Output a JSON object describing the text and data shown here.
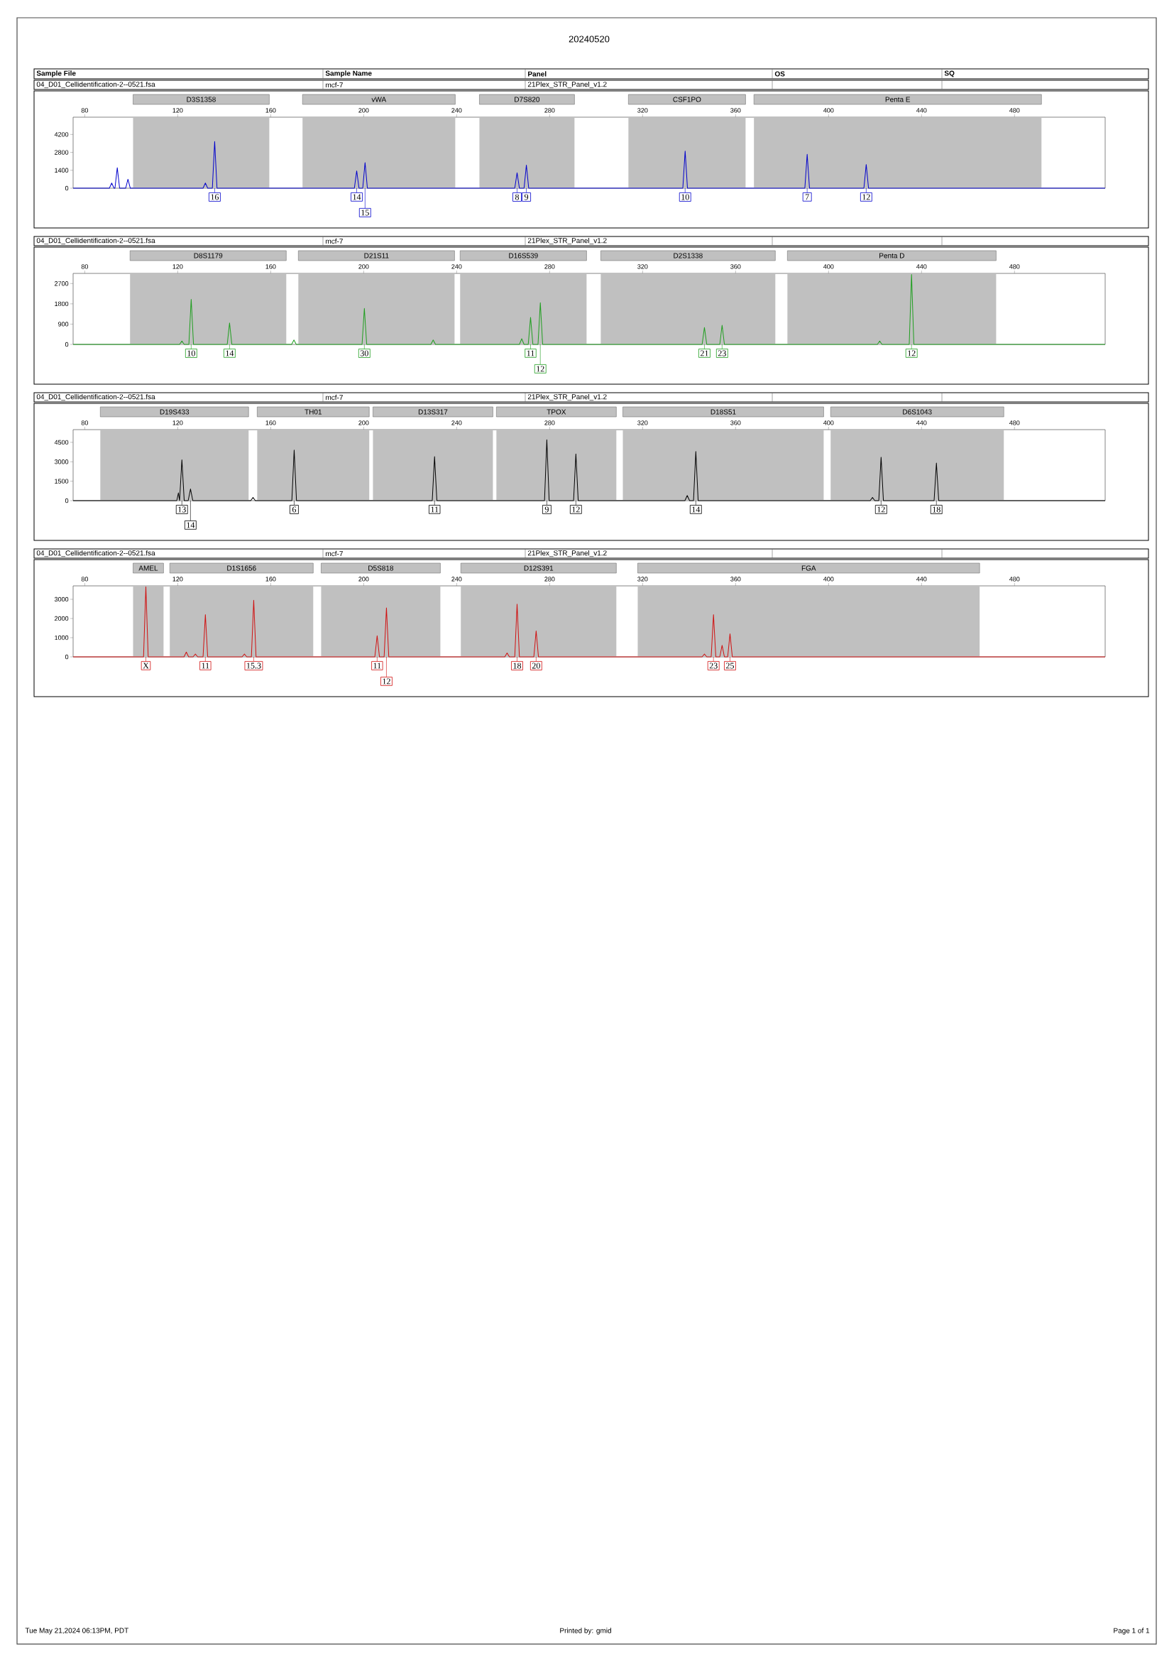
{
  "chart_data": [
    {
      "type": "other",
      "title": "20240520",
      "annotations": [
        "Sample File",
        "Sample Name",
        "Panel",
        "OS",
        "SQ",
        "Tue May 21,2024 06:13PM, PDT",
        "Printed by: gmid",
        "Page 1 of 1"
      ]
    },
    {
      "type": "line",
      "color": "#0000cc",
      "marker": "none",
      "xlim": [
        75,
        519
      ],
      "ylim": [
        0,
        5550
      ],
      "xticks": [
        80,
        120,
        160,
        200,
        240,
        280,
        320,
        360,
        400,
        440,
        480
      ],
      "yticks": [
        0,
        1400,
        2800,
        4200
      ],
      "x": [
        75,
        90.6,
        91.6,
        92.6,
        93,
        94,
        95,
        97.6,
        98.6,
        99.6,
        130.9,
        131.9,
        132.9,
        134.9,
        135.9,
        136.9,
        196,
        197,
        198,
        199.6,
        200.6,
        201.6,
        265,
        266,
        267,
        269,
        270,
        271,
        337.3,
        338.3,
        339.3,
        389.8,
        390.8,
        391.8,
        415.2,
        416.2,
        417.2,
        519
      ],
      "values": [
        0,
        0,
        400,
        0,
        0,
        1600,
        0,
        0,
        700,
        0,
        0,
        400,
        0,
        0,
        3650,
        0,
        0,
        1350,
        0,
        0,
        2000,
        0,
        0,
        1200,
        0,
        0,
        1800,
        0,
        0,
        2900,
        0,
        0,
        2650,
        0,
        0,
        1850,
        0,
        0
      ],
      "bands": [
        {
          "axis": "x",
          "from": 100.8,
          "to": 159.4,
          "label": "D3S1358",
          "color": "#c0c0c0"
        },
        {
          "axis": "x",
          "from": 173.7,
          "to": 239.4,
          "label": "vWA",
          "color": "#c0c0c0"
        },
        {
          "axis": "x",
          "from": 249.8,
          "to": 290.7,
          "label": "D7S820",
          "color": "#c0c0c0"
        },
        {
          "axis": "x",
          "from": 313.9,
          "to": 364.3,
          "label": "CSF1PO",
          "color": "#c0c0c0"
        },
        {
          "axis": "x",
          "from": 367.9,
          "to": 491.6,
          "label": "Penta E",
          "color": "#c0c0c0"
        }
      ],
      "annotations": [
        "04_D01_Cellidentification-2--0521.fsa",
        "mcf-7",
        "21Plex_STR_Panel_v1.2",
        {
          "text": "16",
          "x": 135.9,
          "y": 0
        },
        {
          "text": "14",
          "x": 197,
          "y": 0
        },
        {
          "text": "15",
          "x": 200.6,
          "y": 0
        },
        {
          "text": "8",
          "x": 266,
          "y": 0
        },
        {
          "text": "9",
          "x": 270,
          "y": 0
        },
        {
          "text": "10",
          "x": 338.3,
          "y": 0
        },
        {
          "text": "7",
          "x": 390.8,
          "y": 0
        },
        {
          "text": "12",
          "x": 416.2,
          "y": 0
        }
      ]
    },
    {
      "type": "line",
      "color": "#1f9e1f",
      "marker": "none",
      "xlim": [
        75,
        519
      ],
      "ylim": [
        0,
        3150
      ],
      "xticks": [
        80,
        120,
        160,
        200,
        240,
        280,
        320,
        360,
        400,
        440,
        480
      ],
      "yticks": [
        0,
        900,
        1800,
        2700
      ],
      "x": [
        75,
        120.8,
        121.8,
        122.8,
        124.8,
        125.8,
        126.8,
        141.3,
        142.3,
        143.3,
        169,
        170,
        171,
        199.3,
        200.3,
        201.3,
        228.9,
        229.9,
        230.9,
        267,
        268,
        269,
        270.8,
        271.8,
        272.8,
        275,
        276,
        277,
        345.6,
        346.6,
        347.6,
        353.2,
        354.2,
        355.2,
        421,
        422,
        423,
        434.7,
        435.7,
        436.7,
        519
      ],
      "values": [
        0,
        0,
        150,
        0,
        0,
        2000,
        0,
        0,
        950,
        0,
        0,
        200,
        0,
        0,
        1600,
        0,
        0,
        200,
        0,
        0,
        250,
        0,
        0,
        1200,
        0,
        0,
        1850,
        0,
        0,
        750,
        0,
        0,
        850,
        0,
        0,
        150,
        0,
        0,
        3100,
        0,
        0
      ],
      "bands": [
        {
          "axis": "x",
          "from": 99.5,
          "to": 166.7,
          "label": "D8S1179",
          "color": "#c0c0c0"
        },
        {
          "axis": "x",
          "from": 171.9,
          "to": 239.1,
          "label": "D21S11",
          "color": "#c0c0c0"
        },
        {
          "axis": "x",
          "from": 241.5,
          "to": 295.9,
          "label": "D16S539",
          "color": "#c0c0c0"
        },
        {
          "axis": "x",
          "from": 302,
          "to": 377.1,
          "label": "D2S1338",
          "color": "#c0c0c0"
        },
        {
          "axis": "x",
          "from": 382.3,
          "to": 472.1,
          "label": "Penta D",
          "color": "#c0c0c0"
        }
      ],
      "annotations": [
        "04_D01_Cellidentification-2--0521.fsa",
        "mcf-7",
        "21Plex_STR_Panel_v1.2",
        {
          "text": "10",
          "x": 125.8,
          "y": 0
        },
        {
          "text": "14",
          "x": 142.3,
          "y": 0
        },
        {
          "text": "30",
          "x": 200.3,
          "y": 0
        },
        {
          "text": "11",
          "x": 271.8,
          "y": 0
        },
        {
          "text": "12",
          "x": 276,
          "y": 0
        },
        {
          "text": "21",
          "x": 346.6,
          "y": 0
        },
        {
          "text": "23",
          "x": 354.2,
          "y": 0
        },
        {
          "text": "12",
          "x": 435.7,
          "y": 0
        }
      ]
    },
    {
      "type": "line",
      "color": "#000000",
      "marker": "none",
      "xlim": [
        75,
        519
      ],
      "ylim": [
        0,
        5480
      ],
      "xticks": [
        80,
        120,
        160,
        200,
        240,
        280,
        320,
        360,
        400,
        440,
        480
      ],
      "yticks": [
        0,
        1500,
        3000,
        4500
      ],
      "x": [
        75,
        119.6,
        120.3,
        120.8,
        121.8,
        122.8,
        124.5,
        125.5,
        126.5,
        151.4,
        152.4,
        153.4,
        169.1,
        170.1,
        171.1,
        229.5,
        230.5,
        231.5,
        277.8,
        278.8,
        279.8,
        290.3,
        291.3,
        292.3,
        338.2,
        339.2,
        340.2,
        341.9,
        342.9,
        343.9,
        417.9,
        418.9,
        419.9,
        421.6,
        422.6,
        423.6,
        445.4,
        446.4,
        447.4,
        519
      ],
      "values": [
        0,
        0,
        600,
        0,
        3150,
        0,
        0,
        900,
        0,
        0,
        250,
        0,
        0,
        3900,
        0,
        0,
        3400,
        0,
        0,
        4700,
        0,
        0,
        3600,
        0,
        0,
        400,
        0,
        0,
        3800,
        0,
        0,
        250,
        0,
        0,
        3350,
        0,
        0,
        2900,
        0,
        0
      ],
      "bands": [
        {
          "axis": "x",
          "from": 86.7,
          "to": 150.5,
          "label": "D19S433",
          "color": "#c0c0c0"
        },
        {
          "axis": "x",
          "from": 154.2,
          "to": 202.4,
          "label": "TH01",
          "color": "#c0c0c0"
        },
        {
          "axis": "x",
          "from": 204,
          "to": 255.6,
          "label": "D13S317",
          "color": "#c0c0c0"
        },
        {
          "axis": "x",
          "from": 257.1,
          "to": 308.7,
          "label": "TPOX",
          "color": "#c0c0c0"
        },
        {
          "axis": "x",
          "from": 311.5,
          "to": 397.9,
          "label": "D18S51",
          "color": "#c0c0c0"
        },
        {
          "axis": "x",
          "from": 400.9,
          "to": 475.4,
          "label": "D6S1043",
          "color": "#c0c0c0"
        }
      ],
      "annotations": [
        "04_D01_Cellidentification-2--0521.fsa",
        "mcf-7",
        "21Plex_STR_Panel_v1.2",
        {
          "text": "13",
          "x": 121.8,
          "y": 0
        },
        {
          "text": "14",
          "x": 125.5,
          "y": 0
        },
        {
          "text": "6",
          "x": 170.1,
          "y": 0
        },
        {
          "text": "11",
          "x": 230.5,
          "y": 0
        },
        {
          "text": "9",
          "x": 278.8,
          "y": 0
        },
        {
          "text": "12",
          "x": 291.3,
          "y": 0
        },
        {
          "text": "14",
          "x": 342.9,
          "y": 0
        },
        {
          "text": "12",
          "x": 422.6,
          "y": 0
        },
        {
          "text": "18",
          "x": 446.4,
          "y": 0
        }
      ]
    },
    {
      "type": "line",
      "color": "#d01010",
      "marker": "none",
      "xlim": [
        75,
        519
      ],
      "ylim": [
        0,
        3700
      ],
      "xticks": [
        80,
        120,
        160,
        200,
        240,
        280,
        320,
        360,
        400,
        440,
        480
      ],
      "yticks": [
        0,
        1000,
        2000,
        3000
      ],
      "x": [
        75,
        105.3,
        106.3,
        107.3,
        122.7,
        123.7,
        124.7,
        126.6,
        127.6,
        128.6,
        130.9,
        131.9,
        132.9,
        147.7,
        148.7,
        149.7,
        151.7,
        152.7,
        153.7,
        204.8,
        205.8,
        206.8,
        208.8,
        209.8,
        210.8,
        260.7,
        261.7,
        262.7,
        265,
        266,
        267,
        273.2,
        274.2,
        275.2,
        345.6,
        346.6,
        347.6,
        349.5,
        350.5,
        351.5,
        353.2,
        354.2,
        355.2,
        356.6,
        357.6,
        358.6,
        519
      ],
      "values": [
        0,
        0,
        3650,
        0,
        0,
        250,
        0,
        0,
        150,
        0,
        0,
        2200,
        0,
        0,
        150,
        0,
        0,
        2950,
        0,
        0,
        1100,
        0,
        0,
        2550,
        0,
        0,
        200,
        0,
        0,
        2750,
        0,
        0,
        1350,
        0,
        0,
        150,
        0,
        0,
        2200,
        0,
        0,
        600,
        0,
        0,
        1200,
        0,
        0
      ],
      "bands": [
        {
          "axis": "x",
          "from": 100.8,
          "to": 113.9,
          "label": "AMEL",
          "color": "#c0c0c0"
        },
        {
          "axis": "x",
          "from": 116.6,
          "to": 178.3,
          "label": "D1S1656",
          "color": "#c0c0c0"
        },
        {
          "axis": "x",
          "from": 181.7,
          "to": 233,
          "label": "D5S818",
          "color": "#c0c0c0"
        },
        {
          "axis": "x",
          "from": 241.8,
          "to": 308.7,
          "label": "D12S391",
          "color": "#c0c0c0"
        },
        {
          "axis": "x",
          "from": 317.9,
          "to": 465,
          "label": "FGA",
          "color": "#c0c0c0"
        }
      ],
      "annotations": [
        "04_D01_Cellidentification-2--0521.fsa",
        "mcf-7",
        "21Plex_STR_Panel_v1.2",
        {
          "text": "X",
          "x": 106.3,
          "y": 0
        },
        {
          "text": "11",
          "x": 131.9,
          "y": 0
        },
        {
          "text": "15.3",
          "x": 152.7,
          "y": 0
        },
        {
          "text": "11",
          "x": 205.8,
          "y": 0
        },
        {
          "text": "12",
          "x": 209.8,
          "y": 0
        },
        {
          "text": "18",
          "x": 266,
          "y": 0
        },
        {
          "text": "20",
          "x": 274.2,
          "y": 0
        },
        {
          "text": "23",
          "x": 350.5,
          "y": 0
        },
        {
          "text": "25",
          "x": 357.6,
          "y": 0
        }
      ]
    }
  ]
}
